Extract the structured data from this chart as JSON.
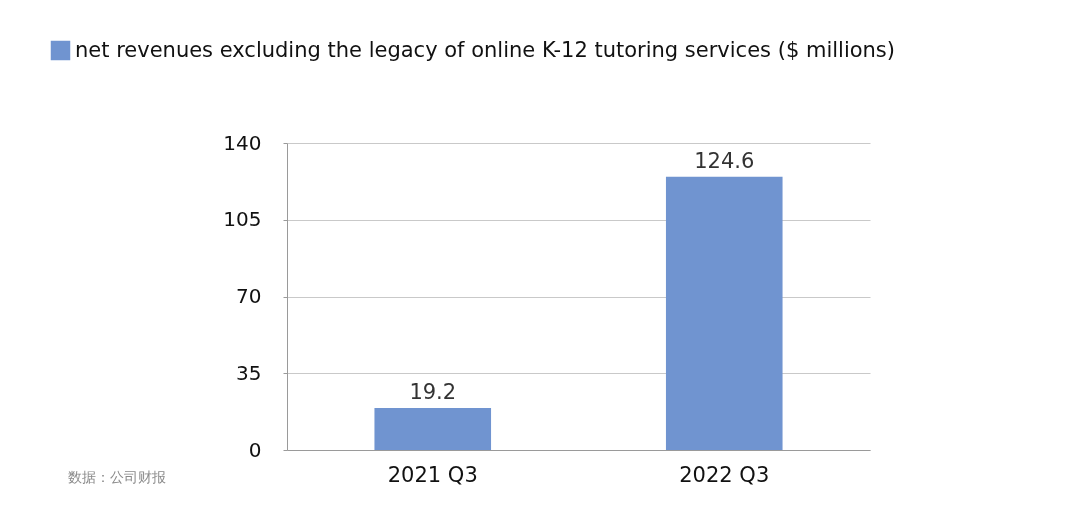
{
  "chart_data": {
    "type": "bar",
    "categories": [
      "2021 Q3",
      "2022 Q3"
    ],
    "series": [
      {
        "name": "net revenues excluding the legacy of online K-12 tutoring services ($ millions)",
        "color": "#7094d0",
        "values": [
          19.2,
          124.6
        ]
      }
    ],
    "ylim": [
      0,
      140
    ],
    "yticks": [
      0,
      35,
      70,
      105,
      140
    ],
    "grid": "y",
    "legend": "top left",
    "data_labels": true,
    "annotations": [
      "数据：公司财报"
    ]
  }
}
